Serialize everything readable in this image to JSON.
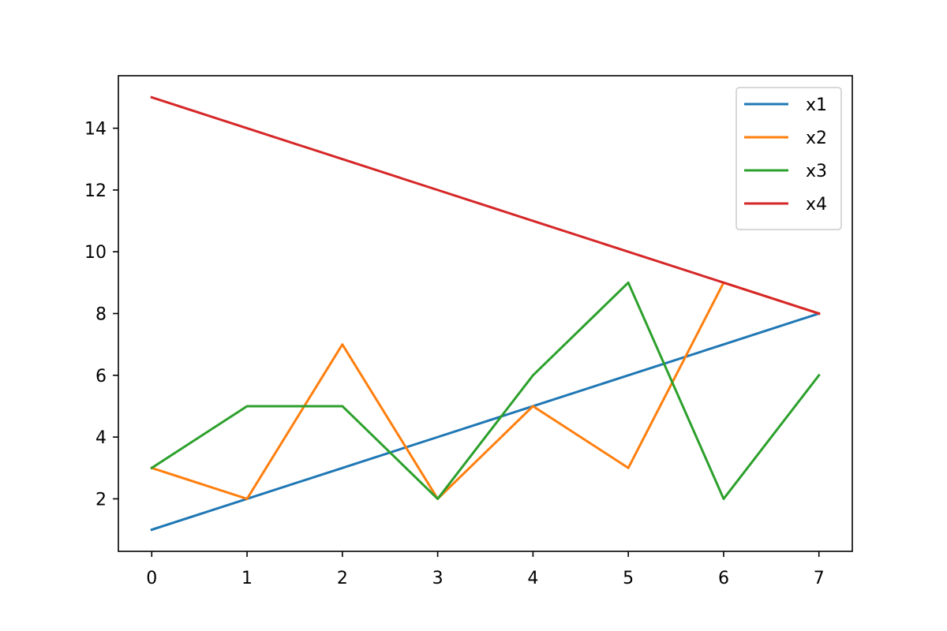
{
  "chart_data": {
    "type": "line",
    "title": "",
    "xlabel": "",
    "ylabel": "",
    "x": [
      0,
      1,
      2,
      3,
      4,
      5,
      6,
      7
    ],
    "xlim": [
      -0.35,
      7.35
    ],
    "ylim": [
      0.3,
      15.7
    ],
    "xticks": [
      0,
      1,
      2,
      3,
      4,
      5,
      6,
      7
    ],
    "yticks": [
      2,
      4,
      6,
      8,
      10,
      12,
      14
    ],
    "grid": false,
    "legend_position": "top-right",
    "series": [
      {
        "name": "x1",
        "color": "#1f77b4",
        "values": [
          1,
          2,
          3,
          4,
          5,
          6,
          7,
          8
        ]
      },
      {
        "name": "x2",
        "color": "#ff7f0e",
        "values": [
          3,
          2,
          7,
          2,
          5,
          3,
          9,
          8
        ]
      },
      {
        "name": "x3",
        "color": "#2ca02c",
        "values": [
          3,
          5,
          5,
          2,
          6,
          9,
          2,
          6
        ]
      },
      {
        "name": "x4",
        "color": "#d62728",
        "values": [
          15,
          14,
          13,
          12,
          11,
          10,
          9,
          8
        ]
      }
    ]
  }
}
